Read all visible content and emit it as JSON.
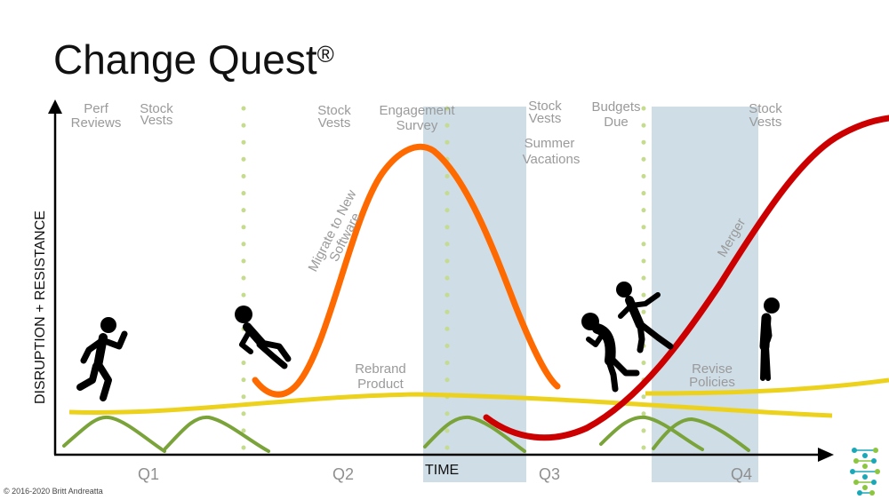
{
  "title": "Change Quest",
  "title_mark": "®",
  "copyright": "© 2016-2020 Britt Andreatta",
  "axes": {
    "x_label": "TIME",
    "y_label": "DISRUPTION + RESISTANCE"
  },
  "quarters": [
    "Q1",
    "Q2",
    "Q3",
    "Q4"
  ],
  "events": [
    [
      "Perf",
      "Reviews"
    ],
    [
      "Stock",
      "Vests"
    ],
    [
      "Stock",
      "Vests"
    ],
    [
      "Engagement",
      "Survey"
    ],
    [
      "Stock",
      "Vests"
    ],
    [
      "Summer",
      "Vacations"
    ],
    [
      "Budgets",
      "Due"
    ],
    [
      "Stock",
      "Vests"
    ]
  ],
  "change_labels": {
    "rebrand": [
      "Rebrand",
      "Product"
    ],
    "revise": [
      "Revise",
      "Policies"
    ],
    "migrate": [
      "Migrate to New",
      "Software"
    ],
    "merger": "Merger"
  },
  "colors": {
    "orange_curve": "#ff6a00",
    "red_curve": "#cc0000",
    "yellow_line": "#ecd21c",
    "green_curves": "#7aa33a",
    "dotted_lines": "#c5dc8e",
    "shaded_period": "#cfdde6",
    "logo_teal": "#1aa7b8",
    "logo_green": "#8cc63f"
  },
  "icons": [
    "running-person-icon",
    "falling-person-icon",
    "hunched-person-icon",
    "falling-person-icon",
    "sad-person-icon",
    "logo-icon"
  ]
}
